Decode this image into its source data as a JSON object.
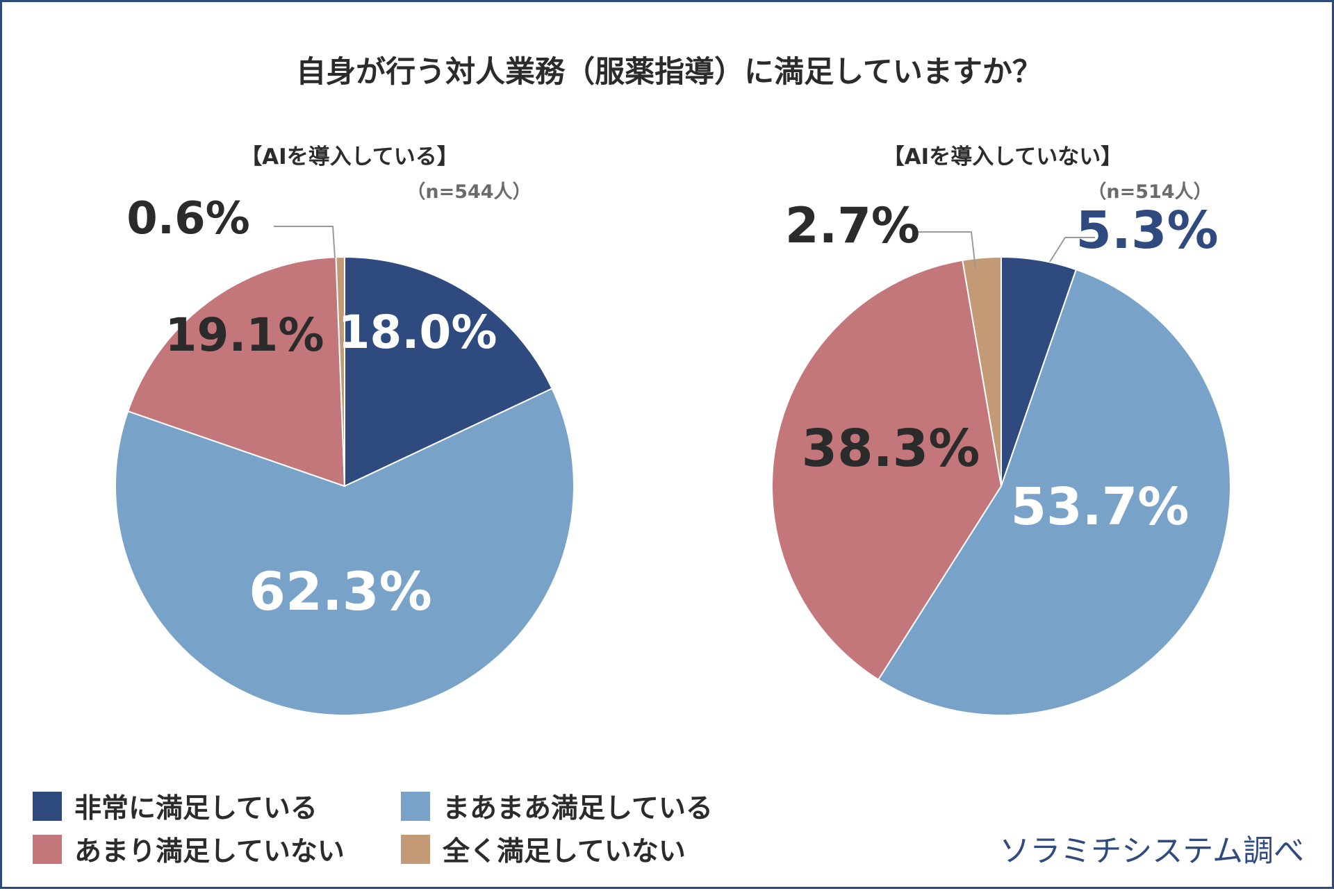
{
  "title": "自身が行う対人業務（服薬指導）に満足していますか？",
  "colors": {
    "very_satisfied": "#2e4a7f",
    "somewhat_satisfied": "#78a2c8",
    "not_very_satisfied": "#c4777a",
    "not_at_all_satisfied": "#c49a76",
    "frame": "#2e4a7f"
  },
  "legend": [
    {
      "label": "非常に満足している",
      "color": "#2e4a7f"
    },
    {
      "label": "まあまあ満足している",
      "color": "#78a2c8"
    },
    {
      "label": "あまり満足していない",
      "color": "#c4777a"
    },
    {
      "label": "全く満足していない",
      "color": "#c49a76"
    }
  ],
  "source": "ソラミチシステム調べ",
  "chart_data": [
    {
      "type": "pie",
      "title": "【AIを導入している】",
      "subtitle": "（n=544人）",
      "categories": [
        "非常に満足している",
        "まあまあ満足している",
        "あまり満足していない",
        "全く満足していない"
      ],
      "values": [
        18.0,
        62.3,
        19.1,
        0.6
      ],
      "labels": [
        "18.0%",
        "62.3%",
        "19.1%",
        "0.6%"
      ]
    },
    {
      "type": "pie",
      "title": "【AIを導入していない】",
      "subtitle": "（n=514人）",
      "categories": [
        "非常に満足している",
        "まあまあ満足している",
        "あまり満足していない",
        "全く満足していない"
      ],
      "values": [
        5.3,
        53.7,
        38.3,
        2.7
      ],
      "labels": [
        "5.3%",
        "53.7%",
        "38.3%",
        "2.7%"
      ]
    }
  ]
}
